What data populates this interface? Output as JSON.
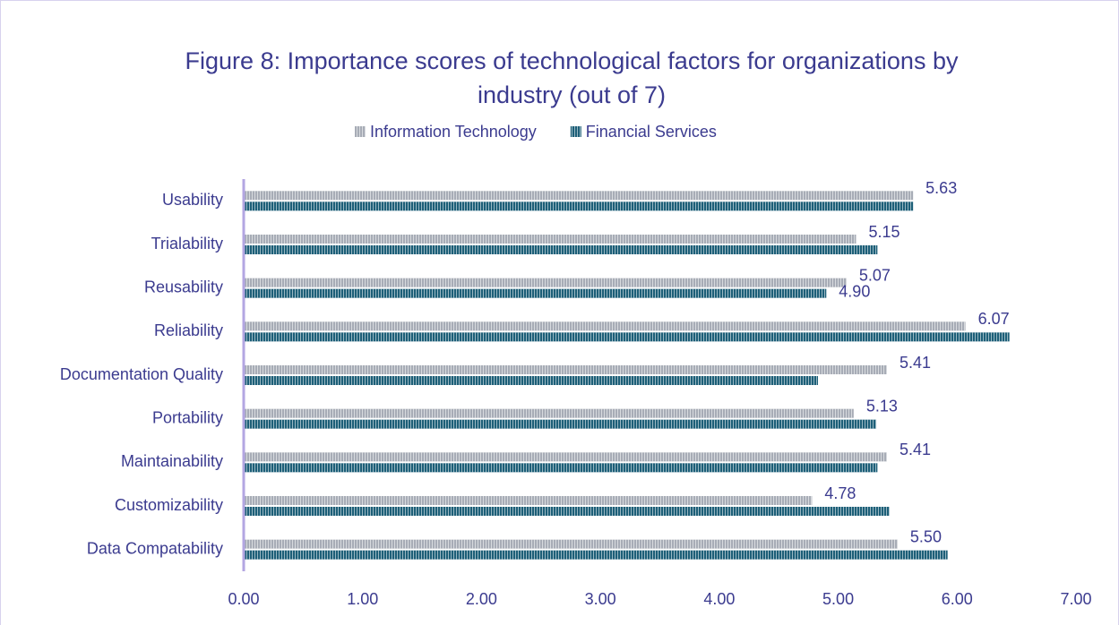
{
  "chart_data": {
    "type": "bar",
    "orientation": "horizontal",
    "title": "Figure 8: Importance scores of technological factors for organizations by industry (out of 7)",
    "title_lines": [
      "Figure 8: Importance scores of technological factors for organizations by",
      "industry (out of 7)"
    ],
    "categories": [
      "Usability",
      "Trialability",
      "Reusability",
      "Reliability",
      "Documentation Quality",
      "Portability",
      "Maintainability",
      "Customizability",
      "Data Compatability"
    ],
    "series": [
      {
        "name": "Information Technology",
        "color": "#a7acb6",
        "values": [
          5.63,
          5.15,
          5.07,
          6.07,
          5.41,
          5.13,
          5.41,
          4.78,
          5.5
        ],
        "value_labels": [
          "5.63",
          "5.15",
          "5.07",
          "6.07",
          "5.41",
          "5.13",
          "5.41",
          "4.78",
          "5.50"
        ]
      },
      {
        "name": "Financial Services",
        "color": "#1d5f78",
        "values": [
          5.63,
          5.33,
          4.9,
          6.44,
          4.83,
          5.32,
          5.33,
          5.43,
          5.92
        ],
        "value_labels": [
          null,
          null,
          "4.90",
          null,
          null,
          null,
          null,
          null,
          null
        ]
      }
    ],
    "xlim": [
      0,
      7
    ],
    "xticks": [
      {
        "value": 0,
        "label": "0.00"
      },
      {
        "value": 1,
        "label": "1.00"
      },
      {
        "value": 2,
        "label": "2.00"
      },
      {
        "value": 3,
        "label": "3.00"
      },
      {
        "value": 4,
        "label": "4.00"
      },
      {
        "value": 5,
        "label": "5.00"
      },
      {
        "value": 6,
        "label": "6.00"
      },
      {
        "value": 7,
        "label": "7.00"
      }
    ],
    "grid": false,
    "legend": "top"
  }
}
